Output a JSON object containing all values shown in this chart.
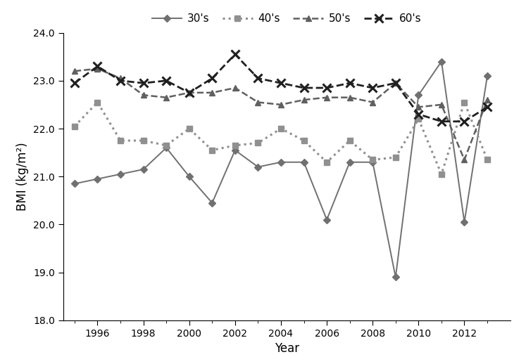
{
  "years": [
    1995,
    1996,
    1997,
    1998,
    1999,
    2000,
    2001,
    2002,
    2003,
    2004,
    2005,
    2006,
    2007,
    2008,
    2009,
    2010,
    2011,
    2012,
    2013
  ],
  "series_30s": [
    20.85,
    20.95,
    21.05,
    21.15,
    21.6,
    21.0,
    20.45,
    21.55,
    21.2,
    21.3,
    21.3,
    20.1,
    21.3,
    21.3,
    18.9,
    22.7,
    23.4,
    20.05,
    23.1
  ],
  "series_40s": [
    22.05,
    22.55,
    21.75,
    21.75,
    21.65,
    22.0,
    21.55,
    21.65,
    21.7,
    22.0,
    21.75,
    21.3,
    21.75,
    21.35,
    21.4,
    22.2,
    21.05,
    22.55,
    21.35
  ],
  "series_50s": [
    23.2,
    23.25,
    23.05,
    22.7,
    22.65,
    22.75,
    22.75,
    22.85,
    22.55,
    22.5,
    22.6,
    22.65,
    22.65,
    22.55,
    22.95,
    22.45,
    22.5,
    21.35,
    22.6
  ],
  "series_60s": [
    22.95,
    23.3,
    23.0,
    22.95,
    23.0,
    22.75,
    23.05,
    23.55,
    23.05,
    22.95,
    22.85,
    22.85,
    22.95,
    22.85,
    22.95,
    22.3,
    22.15,
    22.15,
    22.45
  ],
  "xlabel": "Year",
  "ylabel": "BMI (kg/m²)",
  "ylim": [
    18.0,
    24.0
  ],
  "yticks": [
    18.0,
    19.0,
    20.0,
    21.0,
    22.0,
    23.0,
    24.0
  ],
  "color_30s": "#707070",
  "color_40s": "#909090",
  "color_50s": "#606060",
  "color_60s": "#202020",
  "legend_labels": [
    "30's",
    "40's",
    "50's",
    "60's"
  ],
  "xtick_labels": [
    1996,
    1998,
    2000,
    2002,
    2004,
    2006,
    2008,
    2010,
    2012
  ],
  "xlim": [
    1994.5,
    2014.0
  ]
}
